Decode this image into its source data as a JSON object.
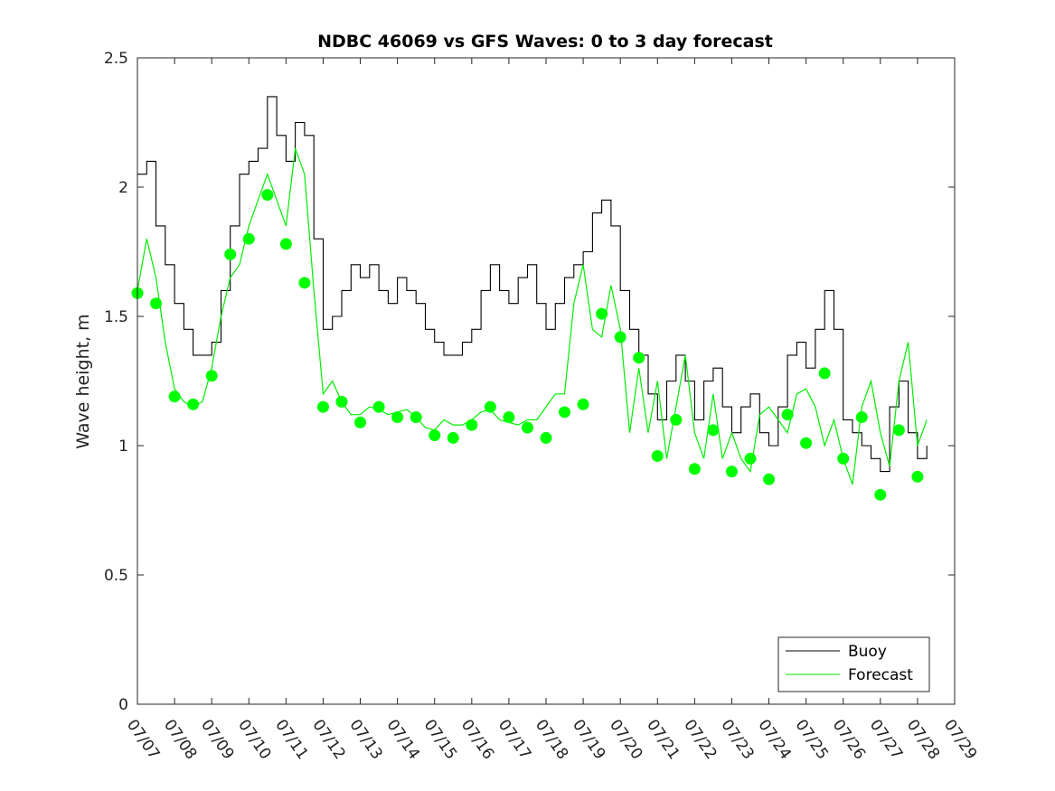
{
  "chart_data": {
    "type": "line",
    "title": "NDBC 46069 vs GFS Waves: 0 to 3 day forecast",
    "xlabel": "",
    "ylabel": "Wave height, m",
    "xlim": [
      "07/07",
      "07/29"
    ],
    "ylim": [
      0,
      2.5
    ],
    "x_tick_labels": [
      "07/07",
      "07/08",
      "07/09",
      "07/10",
      "07/11",
      "07/12",
      "07/13",
      "07/14",
      "07/15",
      "07/16",
      "07/17",
      "07/18",
      "07/19",
      "07/20",
      "07/21",
      "07/22",
      "07/23",
      "07/24",
      "07/25",
      "07/26",
      "07/27",
      "07/28",
      "07/29"
    ],
    "y_tick_labels": [
      "0",
      "0.5",
      "1",
      "1.5",
      "2",
      "2.5"
    ],
    "y_ticks": [
      0,
      0.5,
      1,
      1.5,
      2,
      2.5
    ],
    "grid": false,
    "legend": {
      "position": "bottom-right",
      "entries": [
        "Buoy",
        "Forecast"
      ]
    },
    "colors": {
      "buoy": "#000000",
      "forecast": "#00ee00",
      "marker": "#00ff00"
    },
    "series": [
      {
        "name": "Buoy",
        "kind": "line",
        "points": [
          [
            "07/07 00:00",
            2.05
          ],
          [
            "07/07 06:00",
            2.1
          ],
          [
            "07/07 12:00",
            1.85
          ],
          [
            "07/07 18:00",
            1.7
          ],
          [
            "07/08 00:00",
            1.55
          ],
          [
            "07/08 06:00",
            1.45
          ],
          [
            "07/08 12:00",
            1.35
          ],
          [
            "07/08 18:00",
            1.35
          ],
          [
            "07/09 00:00",
            1.4
          ],
          [
            "07/09 06:00",
            1.6
          ],
          [
            "07/09 12:00",
            1.85
          ],
          [
            "07/09 18:00",
            2.05
          ],
          [
            "07/10 00:00",
            2.1
          ],
          [
            "07/10 06:00",
            2.15
          ],
          [
            "07/10 12:00",
            2.35
          ],
          [
            "07/10 18:00",
            2.2
          ],
          [
            "07/11 00:00",
            2.1
          ],
          [
            "07/11 06:00",
            2.25
          ],
          [
            "07/11 12:00",
            2.2
          ],
          [
            "07/11 18:00",
            1.8
          ],
          [
            "07/12 00:00",
            1.45
          ],
          [
            "07/12 06:00",
            1.5
          ],
          [
            "07/12 12:00",
            1.6
          ],
          [
            "07/12 18:00",
            1.7
          ],
          [
            "07/13 00:00",
            1.65
          ],
          [
            "07/13 06:00",
            1.7
          ],
          [
            "07/13 12:00",
            1.6
          ],
          [
            "07/13 18:00",
            1.55
          ],
          [
            "07/14 00:00",
            1.65
          ],
          [
            "07/14 06:00",
            1.6
          ],
          [
            "07/14 12:00",
            1.55
          ],
          [
            "07/14 18:00",
            1.45
          ],
          [
            "07/15 00:00",
            1.4
          ],
          [
            "07/15 06:00",
            1.35
          ],
          [
            "07/15 12:00",
            1.35
          ],
          [
            "07/15 18:00",
            1.4
          ],
          [
            "07/16 00:00",
            1.45
          ],
          [
            "07/16 06:00",
            1.6
          ],
          [
            "07/16 12:00",
            1.7
          ],
          [
            "07/16 18:00",
            1.6
          ],
          [
            "07/17 00:00",
            1.55
          ],
          [
            "07/17 06:00",
            1.65
          ],
          [
            "07/17 12:00",
            1.7
          ],
          [
            "07/17 18:00",
            1.55
          ],
          [
            "07/18 00:00",
            1.45
          ],
          [
            "07/18 06:00",
            1.55
          ],
          [
            "07/18 12:00",
            1.65
          ],
          [
            "07/18 18:00",
            1.7
          ],
          [
            "07/19 00:00",
            1.75
          ],
          [
            "07/19 06:00",
            1.9
          ],
          [
            "07/19 12:00",
            1.95
          ],
          [
            "07/19 18:00",
            1.85
          ],
          [
            "07/20 00:00",
            1.6
          ],
          [
            "07/20 06:00",
            1.45
          ],
          [
            "07/20 12:00",
            1.35
          ],
          [
            "07/20 18:00",
            1.2
          ],
          [
            "07/21 00:00",
            1.1
          ],
          [
            "07/21 06:00",
            1.25
          ],
          [
            "07/21 12:00",
            1.35
          ],
          [
            "07/21 18:00",
            1.25
          ],
          [
            "07/22 00:00",
            1.1
          ],
          [
            "07/22 06:00",
            1.25
          ],
          [
            "07/22 12:00",
            1.3
          ],
          [
            "07/22 18:00",
            1.15
          ],
          [
            "07/23 00:00",
            1.05
          ],
          [
            "07/23 06:00",
            1.15
          ],
          [
            "07/23 12:00",
            1.2
          ],
          [
            "07/23 18:00",
            1.05
          ],
          [
            "07/24 00:00",
            1.0
          ],
          [
            "07/24 06:00",
            1.15
          ],
          [
            "07/24 12:00",
            1.35
          ],
          [
            "07/24 18:00",
            1.4
          ],
          [
            "07/25 00:00",
            1.3
          ],
          [
            "07/25 06:00",
            1.45
          ],
          [
            "07/25 12:00",
            1.6
          ],
          [
            "07/25 18:00",
            1.45
          ],
          [
            "07/26 00:00",
            1.1
          ],
          [
            "07/26 06:00",
            1.05
          ],
          [
            "07/26 12:00",
            1.0
          ],
          [
            "07/26 18:00",
            0.95
          ],
          [
            "07/27 00:00",
            0.9
          ],
          [
            "07/27 06:00",
            1.15
          ],
          [
            "07/27 12:00",
            1.25
          ],
          [
            "07/27 18:00",
            1.05
          ],
          [
            "07/28 00:00",
            0.95
          ],
          [
            "07/28 06:00",
            1.0
          ]
        ]
      },
      {
        "name": "Forecast",
        "kind": "line",
        "points": [
          [
            "07/07 00:00",
            1.6
          ],
          [
            "07/07 06:00",
            1.8
          ],
          [
            "07/07 12:00",
            1.65
          ],
          [
            "07/07 18:00",
            1.4
          ],
          [
            "07/08 00:00",
            1.22
          ],
          [
            "07/08 06:00",
            1.17
          ],
          [
            "07/08 12:00",
            1.15
          ],
          [
            "07/08 18:00",
            1.17
          ],
          [
            "07/09 00:00",
            1.3
          ],
          [
            "07/09 06:00",
            1.5
          ],
          [
            "07/09 12:00",
            1.65
          ],
          [
            "07/09 18:00",
            1.7
          ],
          [
            "07/10 00:00",
            1.85
          ],
          [
            "07/10 06:00",
            1.95
          ],
          [
            "07/10 12:00",
            2.05
          ],
          [
            "07/10 18:00",
            1.95
          ],
          [
            "07/11 00:00",
            1.85
          ],
          [
            "07/11 06:00",
            2.15
          ],
          [
            "07/11 12:00",
            2.05
          ],
          [
            "07/11 18:00",
            1.6
          ],
          [
            "07/12 00:00",
            1.2
          ],
          [
            "07/12 06:00",
            1.25
          ],
          [
            "07/12 12:00",
            1.17
          ],
          [
            "07/12 18:00",
            1.12
          ],
          [
            "07/13 00:00",
            1.12
          ],
          [
            "07/13 06:00",
            1.15
          ],
          [
            "07/13 12:00",
            1.14
          ],
          [
            "07/13 18:00",
            1.12
          ],
          [
            "07/14 00:00",
            1.13
          ],
          [
            "07/14 06:00",
            1.14
          ],
          [
            "07/14 12:00",
            1.11
          ],
          [
            "07/14 18:00",
            1.07
          ],
          [
            "07/15 00:00",
            1.06
          ],
          [
            "07/15 06:00",
            1.1
          ],
          [
            "07/15 12:00",
            1.08
          ],
          [
            "07/15 18:00",
            1.08
          ],
          [
            "07/16 00:00",
            1.1
          ],
          [
            "07/16 06:00",
            1.13
          ],
          [
            "07/16 12:00",
            1.14
          ],
          [
            "07/16 18:00",
            1.1
          ],
          [
            "07/17 00:00",
            1.09
          ],
          [
            "07/17 06:00",
            1.08
          ],
          [
            "07/17 12:00",
            1.1
          ],
          [
            "07/17 18:00",
            1.1
          ],
          [
            "07/18 00:00",
            1.15
          ],
          [
            "07/18 06:00",
            1.2
          ],
          [
            "07/18 12:00",
            1.2
          ],
          [
            "07/18 18:00",
            1.55
          ],
          [
            "07/19 00:00",
            1.7
          ],
          [
            "07/19 06:00",
            1.45
          ],
          [
            "07/19 12:00",
            1.42
          ],
          [
            "07/19 18:00",
            1.62
          ],
          [
            "07/20 00:00",
            1.45
          ],
          [
            "07/20 06:00",
            1.05
          ],
          [
            "07/20 12:00",
            1.3
          ],
          [
            "07/20 18:00",
            1.05
          ],
          [
            "07/21 00:00",
            1.25
          ],
          [
            "07/21 06:00",
            0.95
          ],
          [
            "07/21 12:00",
            1.15
          ],
          [
            "07/21 18:00",
            1.35
          ],
          [
            "07/22 00:00",
            1.05
          ],
          [
            "07/22 06:00",
            0.95
          ],
          [
            "07/22 12:00",
            1.2
          ],
          [
            "07/22 18:00",
            0.95
          ],
          [
            "07/23 00:00",
            1.05
          ],
          [
            "07/23 06:00",
            0.95
          ],
          [
            "07/23 12:00",
            0.9
          ],
          [
            "07/23 18:00",
            1.12
          ],
          [
            "07/24 00:00",
            1.15
          ],
          [
            "07/24 06:00",
            1.1
          ],
          [
            "07/24 12:00",
            1.05
          ],
          [
            "07/24 18:00",
            1.2
          ],
          [
            "07/25 00:00",
            1.22
          ],
          [
            "07/25 06:00",
            1.15
          ],
          [
            "07/25 12:00",
            1.0
          ],
          [
            "07/25 18:00",
            1.1
          ],
          [
            "07/26 00:00",
            0.95
          ],
          [
            "07/26 06:00",
            0.85
          ],
          [
            "07/26 12:00",
            1.15
          ],
          [
            "07/26 18:00",
            1.25
          ],
          [
            "07/27 00:00",
            1.05
          ],
          [
            "07/27 06:00",
            0.92
          ],
          [
            "07/27 12:00",
            1.25
          ],
          [
            "07/27 18:00",
            1.4
          ],
          [
            "07/28 00:00",
            1.0
          ],
          [
            "07/28 06:00",
            1.1
          ]
        ]
      },
      {
        "name": "",
        "kind": "markers",
        "points": [
          [
            "07/07 00:00",
            1.59
          ],
          [
            "07/07 12:00",
            1.55
          ],
          [
            "07/08 00:00",
            1.19
          ],
          [
            "07/08 12:00",
            1.16
          ],
          [
            "07/09 00:00",
            1.27
          ],
          [
            "07/09 12:00",
            1.74
          ],
          [
            "07/10 00:00",
            1.8
          ],
          [
            "07/10 12:00",
            1.97
          ],
          [
            "07/11 00:00",
            1.78
          ],
          [
            "07/11 12:00",
            1.63
          ],
          [
            "07/12 00:00",
            1.15
          ],
          [
            "07/12 12:00",
            1.17
          ],
          [
            "07/13 00:00",
            1.09
          ],
          [
            "07/13 12:00",
            1.15
          ],
          [
            "07/14 00:00",
            1.11
          ],
          [
            "07/14 12:00",
            1.11
          ],
          [
            "07/15 00:00",
            1.04
          ],
          [
            "07/15 12:00",
            1.03
          ],
          [
            "07/16 00:00",
            1.08
          ],
          [
            "07/16 12:00",
            1.15
          ],
          [
            "07/17 00:00",
            1.11
          ],
          [
            "07/17 12:00",
            1.07
          ],
          [
            "07/18 00:00",
            1.03
          ],
          [
            "07/18 12:00",
            1.13
          ],
          [
            "07/19 00:00",
            1.16
          ],
          [
            "07/19 12:00",
            1.51
          ],
          [
            "07/20 00:00",
            1.42
          ],
          [
            "07/20 12:00",
            1.34
          ],
          [
            "07/21 00:00",
            0.96
          ],
          [
            "07/21 12:00",
            1.1
          ],
          [
            "07/22 00:00",
            0.91
          ],
          [
            "07/22 12:00",
            1.06
          ],
          [
            "07/23 00:00",
            0.9
          ],
          [
            "07/23 12:00",
            0.95
          ],
          [
            "07/24 00:00",
            0.87
          ],
          [
            "07/24 12:00",
            1.12
          ],
          [
            "07/25 00:00",
            1.01
          ],
          [
            "07/25 12:00",
            1.28
          ],
          [
            "07/26 00:00",
            0.95
          ],
          [
            "07/26 12:00",
            1.11
          ],
          [
            "07/27 00:00",
            0.81
          ],
          [
            "07/27 12:00",
            1.06
          ],
          [
            "07/28 00:00",
            0.88
          ]
        ]
      }
    ]
  }
}
